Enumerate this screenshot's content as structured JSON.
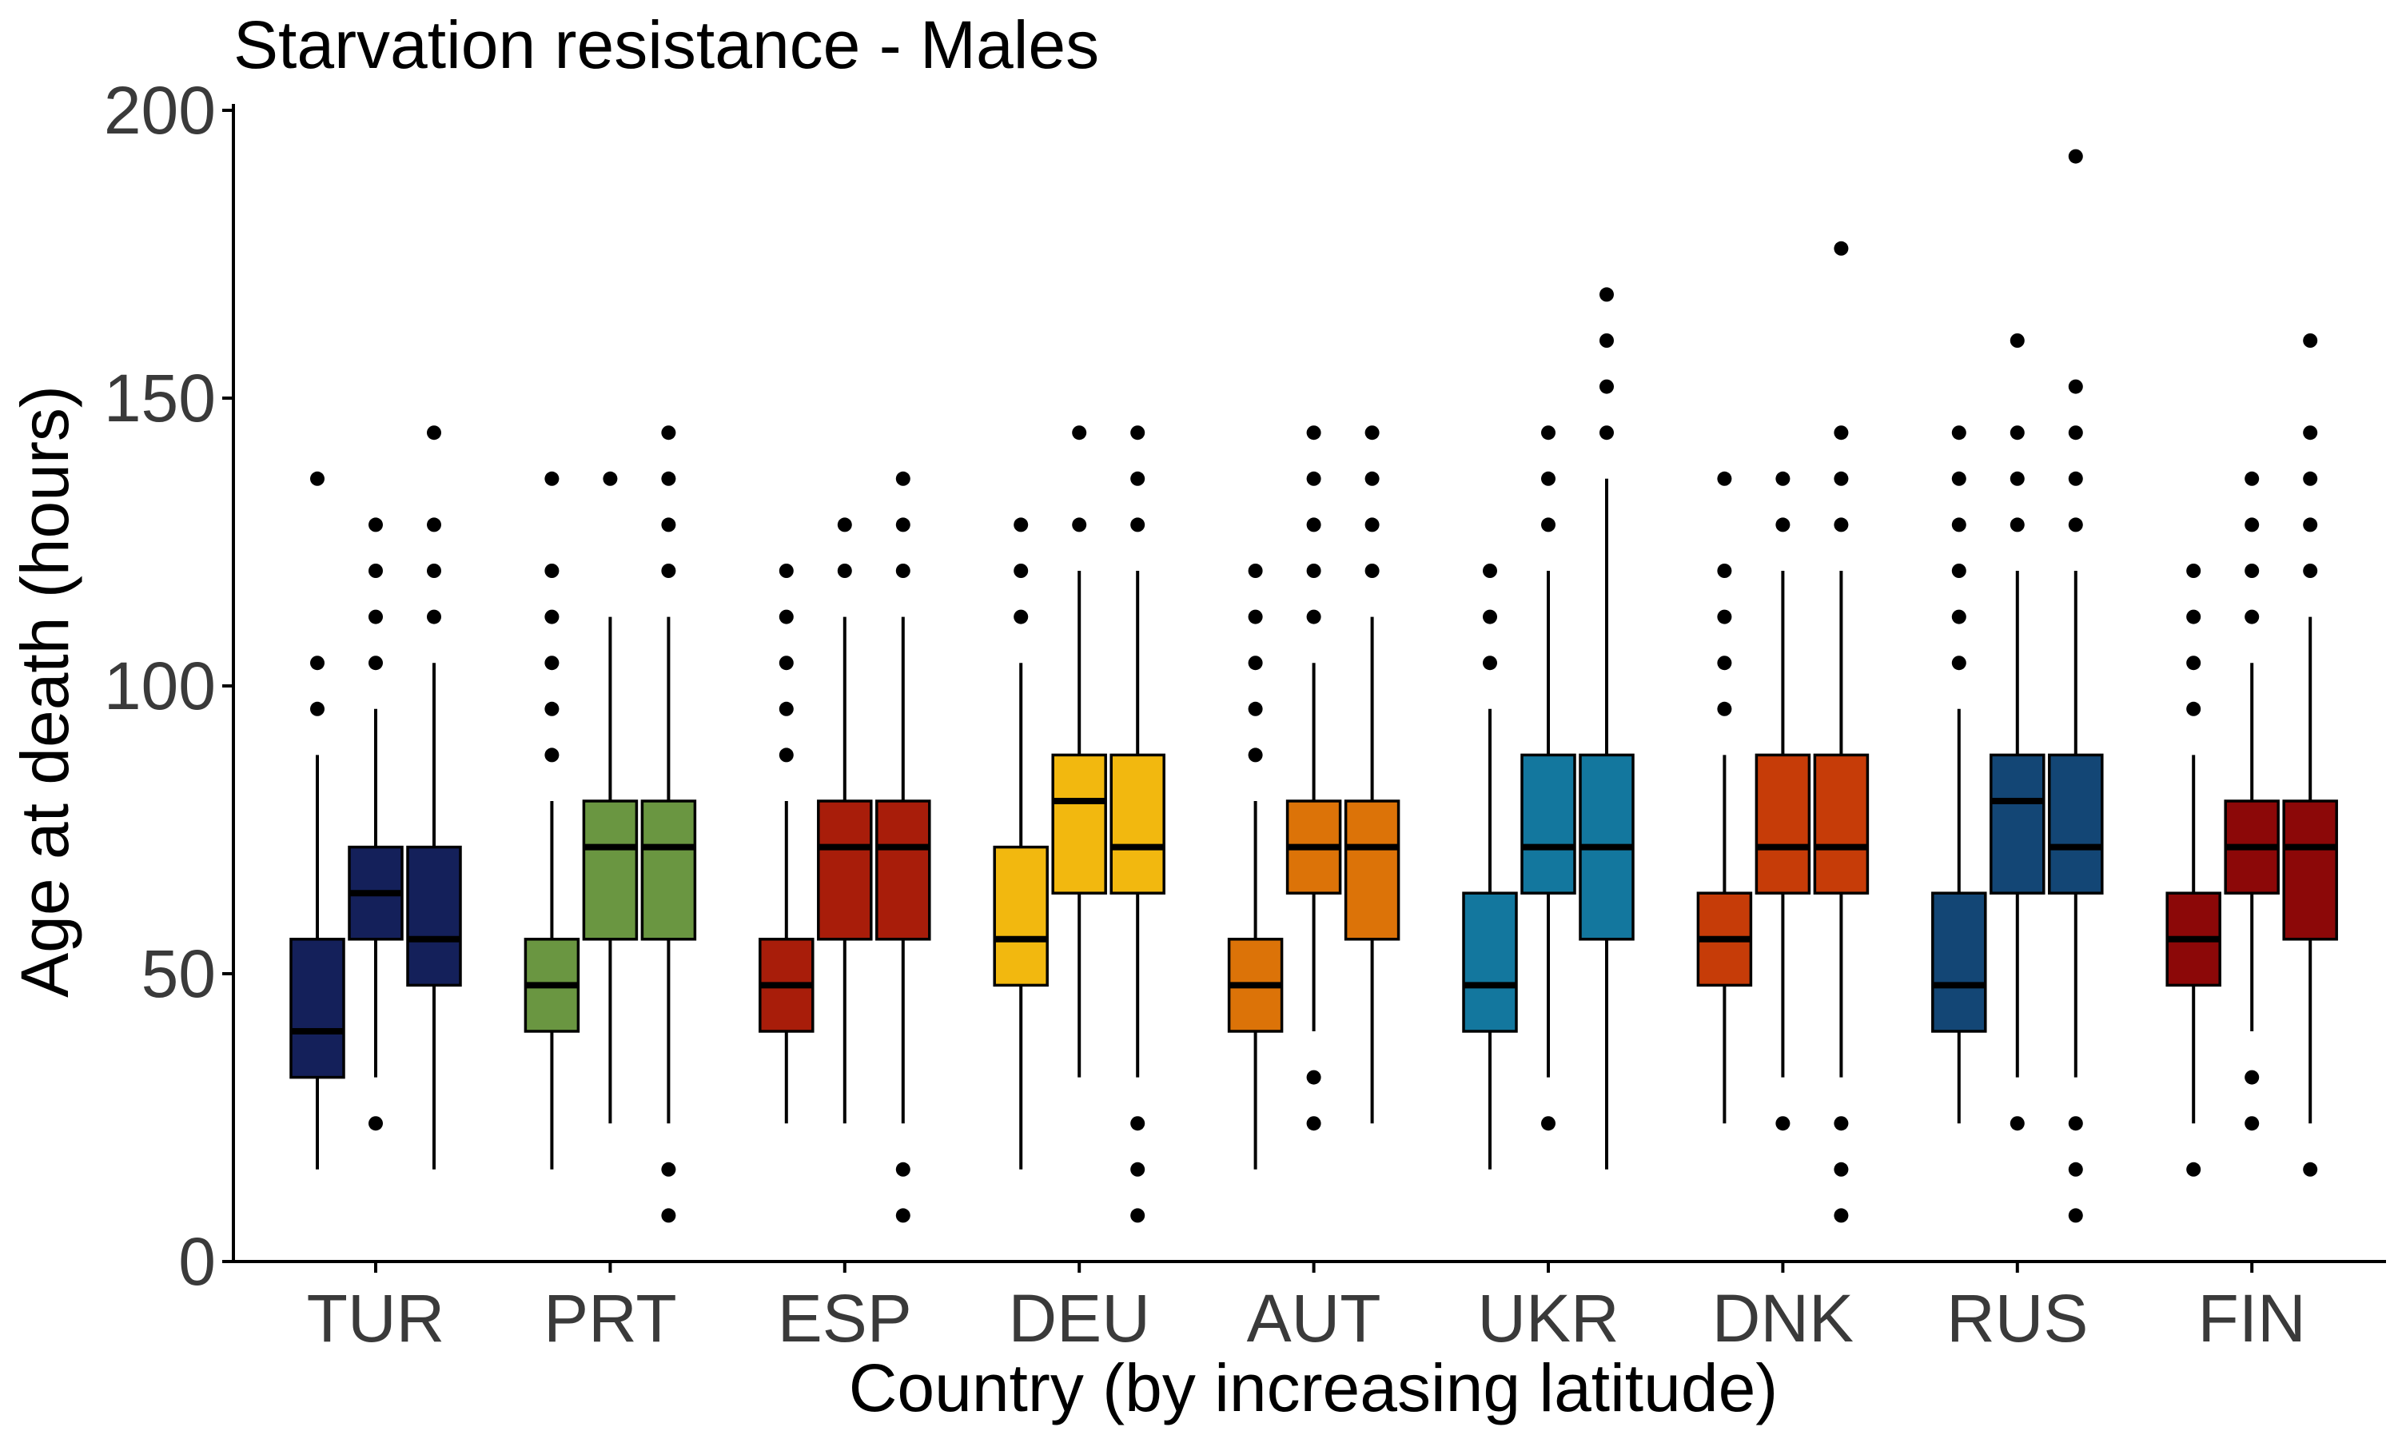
{
  "chart_data": {
    "type": "box",
    "title": "Starvation resistance - Males",
    "xlabel": "Country (by increasing latitude)",
    "ylabel": "Age at death (hours)",
    "ylim": [
      0,
      200
    ],
    "yticks": [
      0,
      50,
      100,
      150,
      200
    ],
    "grid": false,
    "legend": "none",
    "categories": [
      "TUR",
      "PRT",
      "ESP",
      "DEU",
      "AUT",
      "UKR",
      "DNK",
      "RUS",
      "FIN"
    ],
    "colors": {
      "TUR": "#14205a",
      "PRT": "#6a9641",
      "ESP": "#a81d0a",
      "DEU": "#f2b80f",
      "AUT": "#dc7308",
      "UKR": "#13779e",
      "DNK": "#c63c08",
      "RUS": "#134675",
      "FIN": "#8c0808"
    },
    "groups": [
      {
        "category": "TUR",
        "boxes": [
          {
            "whisker_low": 16,
            "q1": 32,
            "median": 40,
            "q3": 56,
            "whisker_high": 88,
            "outliers": [
              96,
              104,
              136
            ]
          },
          {
            "whisker_low": 32,
            "q1": 56,
            "median": 64,
            "q3": 72,
            "whisker_high": 96,
            "outliers": [
              24,
              104,
              112,
              120,
              128
            ]
          },
          {
            "whisker_low": 16,
            "q1": 48,
            "median": 56,
            "q3": 72,
            "whisker_high": 104,
            "outliers": [
              112,
              120,
              128,
              144
            ]
          }
        ]
      },
      {
        "category": "PRT",
        "boxes": [
          {
            "whisker_low": 16,
            "q1": 40,
            "median": 48,
            "q3": 56,
            "whisker_high": 80,
            "outliers": [
              88,
              96,
              104,
              112,
              120,
              136
            ]
          },
          {
            "whisker_low": 24,
            "q1": 56,
            "median": 72,
            "q3": 80,
            "whisker_high": 112,
            "outliers": [
              136
            ]
          },
          {
            "whisker_low": 24,
            "q1": 56,
            "median": 72,
            "q3": 80,
            "whisker_high": 112,
            "outliers": [
              8,
              16,
              120,
              128,
              136,
              144
            ]
          }
        ]
      },
      {
        "category": "ESP",
        "boxes": [
          {
            "whisker_low": 24,
            "q1": 40,
            "median": 48,
            "q3": 56,
            "whisker_high": 80,
            "outliers": [
              88,
              96,
              104,
              112,
              120
            ]
          },
          {
            "whisker_low": 24,
            "q1": 56,
            "median": 72,
            "q3": 80,
            "whisker_high": 112,
            "outliers": [
              120,
              128
            ]
          },
          {
            "whisker_low": 24,
            "q1": 56,
            "median": 72,
            "q3": 80,
            "whisker_high": 112,
            "outliers": [
              8,
              16,
              120,
              128,
              136
            ]
          }
        ]
      },
      {
        "category": "DEU",
        "boxes": [
          {
            "whisker_low": 16,
            "q1": 48,
            "median": 56,
            "q3": 72,
            "whisker_high": 104,
            "outliers": [
              112,
              120,
              128
            ]
          },
          {
            "whisker_low": 32,
            "q1": 64,
            "median": 80,
            "q3": 88,
            "whisker_high": 120,
            "outliers": [
              128,
              144
            ]
          },
          {
            "whisker_low": 32,
            "q1": 64,
            "median": 72,
            "q3": 88,
            "whisker_high": 120,
            "outliers": [
              8,
              16,
              24,
              128,
              136,
              144
            ]
          }
        ]
      },
      {
        "category": "AUT",
        "boxes": [
          {
            "whisker_low": 16,
            "q1": 40,
            "median": 48,
            "q3": 56,
            "whisker_high": 80,
            "outliers": [
              88,
              96,
              104,
              112,
              120
            ]
          },
          {
            "whisker_low": 40,
            "q1": 64,
            "median": 72,
            "q3": 80,
            "whisker_high": 104,
            "outliers": [
              24,
              32,
              112,
              120,
              128,
              136,
              144
            ]
          },
          {
            "whisker_low": 24,
            "q1": 56,
            "median": 72,
            "q3": 80,
            "whisker_high": 112,
            "outliers": [
              120,
              128,
              136,
              144
            ]
          }
        ]
      },
      {
        "category": "UKR",
        "boxes": [
          {
            "whisker_low": 16,
            "q1": 40,
            "median": 48,
            "q3": 64,
            "whisker_high": 96,
            "outliers": [
              104,
              112,
              120
            ]
          },
          {
            "whisker_low": 32,
            "q1": 64,
            "median": 72,
            "q3": 88,
            "whisker_high": 120,
            "outliers": [
              24,
              128,
              136,
              144
            ]
          },
          {
            "whisker_low": 16,
            "q1": 56,
            "median": 72,
            "q3": 88,
            "whisker_high": 136,
            "outliers": [
              144,
              152,
              160,
              168
            ]
          }
        ]
      },
      {
        "category": "DNK",
        "boxes": [
          {
            "whisker_low": 24,
            "q1": 48,
            "median": 56,
            "q3": 64,
            "whisker_high": 88,
            "outliers": [
              96,
              104,
              112,
              120,
              136
            ]
          },
          {
            "whisker_low": 32,
            "q1": 64,
            "median": 72,
            "q3": 88,
            "whisker_high": 120,
            "outliers": [
              24,
              128,
              136
            ]
          },
          {
            "whisker_low": 32,
            "q1": 64,
            "median": 72,
            "q3": 88,
            "whisker_high": 120,
            "outliers": [
              8,
              16,
              24,
              128,
              136,
              144,
              176
            ]
          }
        ]
      },
      {
        "category": "RUS",
        "boxes": [
          {
            "whisker_low": 24,
            "q1": 40,
            "median": 48,
            "q3": 64,
            "whisker_high": 96,
            "outliers": [
              104,
              112,
              120,
              128,
              136,
              144
            ]
          },
          {
            "whisker_low": 32,
            "q1": 64,
            "median": 80,
            "q3": 88,
            "whisker_high": 120,
            "outliers": [
              24,
              128,
              136,
              144,
              160
            ]
          },
          {
            "whisker_low": 32,
            "q1": 64,
            "median": 72,
            "q3": 88,
            "whisker_high": 120,
            "outliers": [
              8,
              16,
              24,
              128,
              136,
              144,
              152,
              192
            ]
          }
        ]
      },
      {
        "category": "FIN",
        "boxes": [
          {
            "whisker_low": 24,
            "q1": 48,
            "median": 56,
            "q3": 64,
            "whisker_high": 88,
            "outliers": [
              16,
              96,
              104,
              112,
              120
            ]
          },
          {
            "whisker_low": 40,
            "q1": 64,
            "median": 72,
            "q3": 80,
            "whisker_high": 104,
            "outliers": [
              24,
              32,
              112,
              120,
              128,
              136
            ]
          },
          {
            "whisker_low": 24,
            "q1": 56,
            "median": 72,
            "q3": 80,
            "whisker_high": 112,
            "outliers": [
              16,
              120,
              128,
              136,
              144,
              160
            ]
          }
        ]
      }
    ]
  }
}
